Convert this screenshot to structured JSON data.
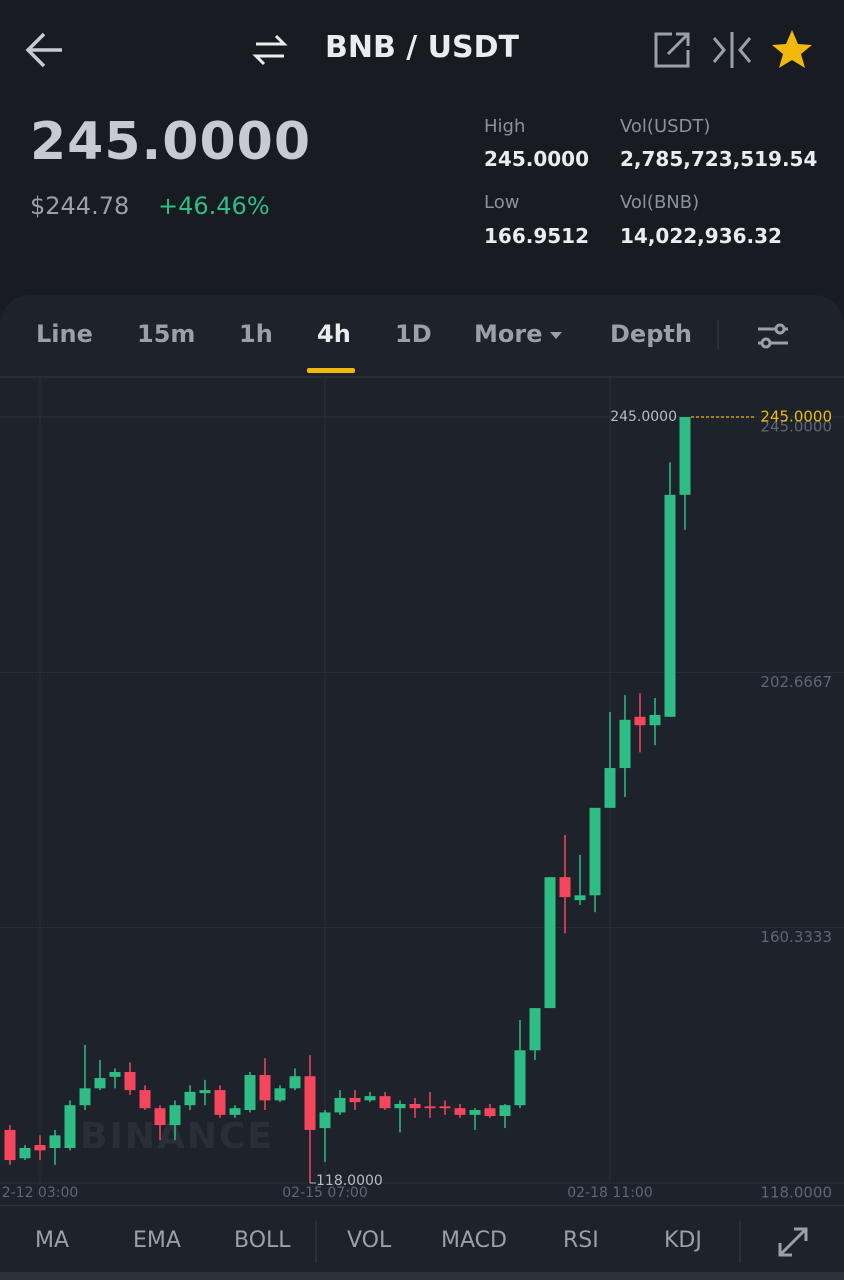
{
  "header": {
    "title": "BNB / USDT"
  },
  "ticker": {
    "price": "245.0000",
    "usd_price": "$244.78",
    "change": "+46.46%",
    "stats": [
      {
        "label": "High",
        "value": "245.0000"
      },
      {
        "label": "Vol(USDT)",
        "value": "2,785,723,519.54"
      },
      {
        "label": "Low",
        "value": "166.9512"
      },
      {
        "label": "Vol(BNB)",
        "value": "14,022,936.32"
      }
    ]
  },
  "tabs": {
    "items": [
      "Line",
      "15m",
      "1h",
      "4h",
      "1D",
      "More",
      "Depth"
    ],
    "active": 3
  },
  "indicators": [
    "MA",
    "EMA",
    "BOLL",
    "VOL",
    "MACD",
    "RSI",
    "KDJ"
  ],
  "chart_data": {
    "type": "candlestick",
    "watermark": "BINANCE",
    "categories": [
      null,
      null,
      "2-12 03:00",
      null,
      null,
      null,
      null,
      null,
      null,
      null,
      null,
      null,
      null,
      null,
      null,
      null,
      null,
      null,
      null,
      null,
      null,
      "02-15 07:00",
      null,
      null,
      null,
      null,
      null,
      null,
      null,
      null,
      null,
      null,
      null,
      null,
      null,
      null,
      null,
      null,
      null,
      null,
      "02-18 11:00",
      null,
      null,
      null,
      null,
      null
    ],
    "open": [
      126.8,
      122.1,
      124.3,
      123.8,
      123.8,
      130.9,
      133.7,
      135.6,
      136.4,
      133.4,
      130.4,
      127.6,
      130.9,
      132.9,
      133.4,
      129.3,
      130.1,
      135.9,
      131.7,
      133.7,
      135.7,
      127.1,
      129.7,
      132.1,
      131.7,
      132.4,
      130.4,
      131.1,
      130.7,
      130.7,
      130.4,
      129.3,
      130.4,
      129.1,
      130.9,
      140.0,
      147.0,
      168.7,
      164.9,
      165.7,
      180.2,
      186.8,
      195.3,
      193.9,
      195.3,
      232.1
    ],
    "high": [
      127.6,
      124.3,
      125.9,
      126.8,
      131.7,
      140.9,
      138.4,
      137.0,
      138.0,
      134.2,
      130.9,
      131.7,
      134.2,
      135.1,
      134.2,
      130.9,
      136.4,
      138.7,
      134.2,
      137.0,
      139.2,
      130.1,
      133.4,
      133.4,
      133.1,
      133.1,
      131.7,
      132.1,
      133.1,
      131.7,
      131.1,
      130.4,
      131.1,
      131.1,
      145.0,
      147.0,
      168.7,
      175.7,
      172.4,
      180.2,
      196.1,
      198.9,
      199.2,
      198.4,
      237.5,
      245
    ],
    "low": [
      121.0,
      121.8,
      121.8,
      121.0,
      123.4,
      130.1,
      133.4,
      133.7,
      132.6,
      130.1,
      125.1,
      125.1,
      130.1,
      130.9,
      128.8,
      128.8,
      129.7,
      130.1,
      131.4,
      133.4,
      118,
      121.5,
      129.3,
      130.1,
      131.4,
      130.1,
      126.4,
      128.8,
      128.8,
      129.3,
      128.8,
      126.8,
      128.8,
      127.1,
      130.4,
      138.4,
      147.0,
      159.4,
      164.1,
      162.9,
      180.2,
      182.0,
      189.4,
      190.6,
      195.3,
      226.3
    ],
    "close": [
      121.8,
      123.8,
      123.4,
      125.9,
      130.9,
      133.7,
      135.4,
      136.4,
      133.4,
      130.4,
      127.6,
      130.9,
      133.1,
      133.4,
      129.3,
      130.4,
      135.9,
      131.7,
      133.7,
      135.7,
      126.8,
      129.7,
      132.1,
      131.4,
      132.4,
      130.4,
      131.1,
      130.4,
      130.4,
      130.4,
      129.3,
      130.1,
      129.1,
      130.9,
      140.0,
      147.0,
      168.7,
      165.4,
      165.7,
      180.2,
      186.8,
      194.8,
      193.9,
      195.6,
      232.1,
      245
    ],
    "up_color": "#2ebd85",
    "down_color": "#f6465d",
    "ylim": [
      114.35,
      251.47
    ],
    "yticks": [
      {
        "value": 245,
        "label": "245.0000"
      },
      {
        "value": 202.6667,
        "label": "202.6667"
      },
      {
        "value": 160.3333,
        "label": "160.3333"
      },
      {
        "value": 118,
        "label": "118.0000"
      }
    ],
    "grid": true,
    "high_marker": {
      "value": 245,
      "label": "245.0000"
    },
    "low_marker": {
      "value": 118,
      "label": "118.0000"
    },
    "last_price": {
      "value": 245,
      "label": "245.0000",
      "color": "#f0b90b"
    }
  }
}
